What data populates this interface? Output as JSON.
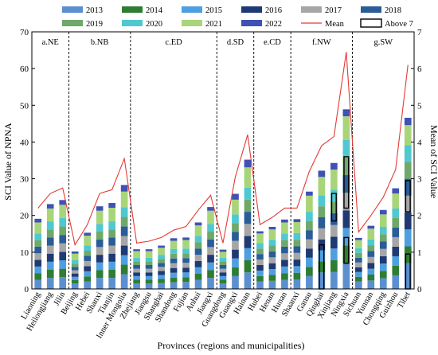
{
  "chart_data": {
    "type": "bar",
    "stacked": true,
    "xlabel": "Provinces (regions and municipalities)",
    "ylabel": "SCI Value of NPNA",
    "y2label": "Mean of SCI Value",
    "ylim": [
      0,
      70
    ],
    "y2lim": [
      0,
      7
    ],
    "yticks": [
      0,
      10,
      20,
      30,
      40,
      50,
      60,
      70
    ],
    "y2ticks": [
      0,
      1,
      2,
      3,
      4,
      5,
      6,
      7
    ],
    "grid": false,
    "legend_position": "top",
    "categories": [
      "Liaoning",
      "Heilongjiang",
      "Jilin",
      "Beijing",
      "Hebei",
      "Shanxi",
      "Tianjin",
      "Inner Mongolia",
      "Zhejiang",
      "Jiangsu",
      "Shanghai",
      "Shandong",
      "Fujian",
      "Anhui",
      "Jiangxi",
      "Guangdong",
      "Guangxi",
      "Hainan",
      "Hubei",
      "Henan",
      "Hunan",
      "Shaanxi",
      "Gansu",
      "Qinghai",
      "Xinjiang",
      "Ningxia",
      "Sichuan",
      "Yunnan",
      "Chongqing",
      "Guizhou",
      "Tibet"
    ],
    "regions": [
      {
        "label": "a.NE",
        "start": 0,
        "end": 2
      },
      {
        "label": "b.NB",
        "start": 3,
        "end": 7
      },
      {
        "label": "c.ED",
        "start": 8,
        "end": 14
      },
      {
        "label": "d.SD",
        "start": 15,
        "end": 17
      },
      {
        "label": "e.CD",
        "start": 18,
        "end": 20
      },
      {
        "label": "f.NW",
        "start": 21,
        "end": 25
      },
      {
        "label": "g.SW",
        "start": 26,
        "end": 30
      }
    ],
    "series": [
      {
        "name": "2013",
        "color": "#5B8FD0",
        "values": [
          2.5,
          3.0,
          3.2,
          1.5,
          2.0,
          3.0,
          3.0,
          4.0,
          1.5,
          1.5,
          1.6,
          1.8,
          1.9,
          2.5,
          3.0,
          1.5,
          3.5,
          4.5,
          2.0,
          2.2,
          2.5,
          2.6,
          3.5,
          4.5,
          4.6,
          7.0,
          2.0,
          2.3,
          2.9,
          3.7,
          7.0
        ]
      },
      {
        "name": "2014",
        "color": "#2E7D32",
        "values": [
          1.8,
          2.2,
          2.3,
          0.9,
          1.4,
          2.1,
          2.2,
          2.6,
          1.0,
          1.0,
          1.1,
          1.3,
          1.3,
          1.7,
          2.1,
          1.0,
          2.4,
          3.3,
          1.5,
          1.6,
          1.8,
          1.8,
          2.5,
          3.0,
          3.2,
          4.8,
          1.3,
          1.6,
          2.0,
          2.6,
          4.6
        ]
      },
      {
        "name": "2015",
        "color": "#4E9FE0",
        "values": [
          1.8,
          2.2,
          2.3,
          0.9,
          1.4,
          2.1,
          2.2,
          2.6,
          1.0,
          1.0,
          1.1,
          1.3,
          1.3,
          1.7,
          2.1,
          1.0,
          2.4,
          3.3,
          1.5,
          1.6,
          1.8,
          1.8,
          2.5,
          3.0,
          3.2,
          4.8,
          1.3,
          1.6,
          2.0,
          2.6,
          4.6
        ]
      },
      {
        "name": "2016",
        "color": "#1F3A73",
        "values": [
          1.8,
          2.2,
          2.3,
          0.9,
          1.4,
          2.1,
          2.2,
          2.6,
          1.0,
          1.0,
          1.1,
          1.3,
          1.3,
          1.7,
          2.1,
          1.0,
          2.4,
          3.3,
          1.5,
          1.6,
          1.8,
          1.8,
          2.5,
          3.0,
          3.2,
          4.8,
          1.3,
          1.6,
          2.0,
          2.6,
          4.6
        ]
      },
      {
        "name": "2017",
        "color": "#A6A6A6",
        "values": [
          1.8,
          2.2,
          2.3,
          0.9,
          1.4,
          2.1,
          2.2,
          2.6,
          1.0,
          1.0,
          1.1,
          1.3,
          1.3,
          1.7,
          2.1,
          1.0,
          2.4,
          3.3,
          1.5,
          1.6,
          1.8,
          1.8,
          2.5,
          3.0,
          3.2,
          4.8,
          1.3,
          1.6,
          2.0,
          2.6,
          4.6
        ]
      },
      {
        "name": "2018",
        "color": "#2A5C98",
        "values": [
          1.8,
          2.2,
          2.3,
          0.9,
          1.4,
          2.1,
          2.2,
          2.6,
          1.0,
          1.0,
          1.1,
          1.3,
          1.3,
          1.7,
          2.1,
          1.0,
          2.4,
          3.3,
          1.5,
          1.6,
          1.8,
          1.8,
          2.5,
          3.0,
          3.2,
          4.8,
          1.3,
          1.6,
          2.0,
          2.6,
          4.6
        ]
      },
      {
        "name": "2019",
        "color": "#6FA86A",
        "values": [
          1.8,
          2.2,
          2.3,
          0.9,
          1.4,
          2.1,
          2.2,
          2.6,
          1.0,
          1.0,
          1.1,
          1.3,
          1.3,
          1.7,
          2.1,
          1.0,
          2.4,
          3.3,
          1.5,
          1.6,
          1.8,
          1.8,
          2.5,
          3.0,
          3.2,
          4.8,
          1.3,
          1.6,
          2.0,
          2.6,
          4.6
        ]
      },
      {
        "name": "2020",
        "color": "#4FC8D0",
        "values": [
          1.8,
          2.2,
          2.3,
          0.9,
          1.4,
          2.1,
          2.2,
          2.6,
          1.0,
          1.0,
          1.1,
          1.3,
          1.3,
          1.7,
          2.1,
          1.0,
          2.4,
          3.3,
          1.5,
          1.6,
          1.8,
          1.8,
          2.5,
          3.0,
          3.2,
          4.8,
          1.3,
          1.6,
          2.0,
          2.6,
          4.6
        ]
      },
      {
        "name": "2021",
        "color": "#A8D57A",
        "values": [
          3.0,
          3.5,
          3.6,
          1.8,
          2.7,
          3.6,
          3.7,
          4.3,
          1.8,
          1.8,
          1.9,
          2.2,
          2.3,
          2.9,
          3.6,
          1.6,
          4.0,
          5.5,
          2.6,
          2.8,
          3.0,
          3.0,
          4.4,
          5.0,
          5.5,
          6.4,
          2.2,
          2.9,
          3.4,
          4.1,
          5.4
        ]
      },
      {
        "name": "2022",
        "color": "#3F51B5",
        "values": [
          1.0,
          1.2,
          1.3,
          0.6,
          0.8,
          1.2,
          1.3,
          1.8,
          0.5,
          0.5,
          0.6,
          0.7,
          0.7,
          0.8,
          1.0,
          0.6,
          1.6,
          2.1,
          0.6,
          0.7,
          0.8,
          0.8,
          1.1,
          1.7,
          1.8,
          1.9,
          0.6,
          0.8,
          1.2,
          1.4,
          2.0
        ]
      }
    ],
    "mean": {
      "name": "Mean",
      "color": "#E53935",
      "values": [
        2.2,
        2.6,
        2.75,
        1.2,
        1.75,
        2.6,
        2.7,
        3.55,
        1.25,
        1.3,
        1.4,
        1.6,
        1.7,
        2.15,
        2.55,
        1.25,
        3.05,
        4.2,
        1.75,
        1.95,
        2.2,
        2.2,
        3.2,
        3.9,
        4.15,
        6.45,
        1.55,
        2.0,
        2.5,
        3.25,
        6.1
      ]
    },
    "above7": {
      "name": "Above 7",
      "boxes": [
        {
          "category": "Qinghai",
          "from": 0,
          "to": 12
        },
        {
          "category": "Xinjiang",
          "from": 18.5,
          "to": 26
        },
        {
          "category": "Ningxia",
          "from": 7,
          "to": 14
        },
        {
          "category": "Ningxia",
          "from": 22,
          "to": 36
        },
        {
          "category": "Tibet",
          "from": 0,
          "to": 9.5
        },
        {
          "category": "Tibet",
          "from": 21,
          "to": 29.5
        }
      ]
    }
  }
}
